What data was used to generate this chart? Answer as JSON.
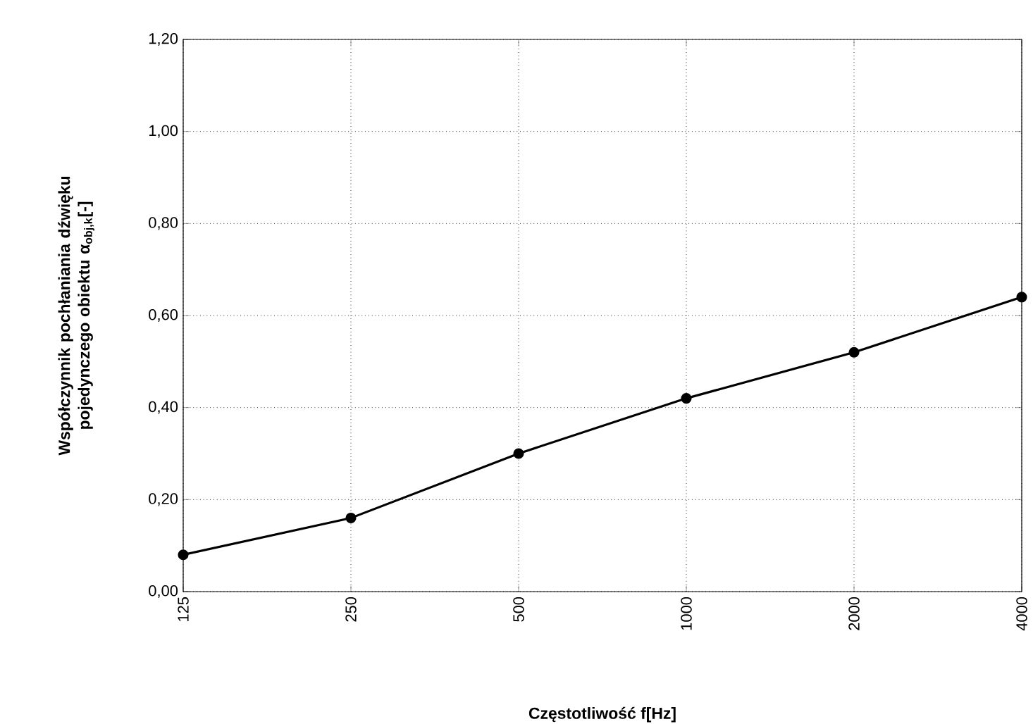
{
  "chart_data": {
    "type": "line",
    "xlabel": "Częstotliwość f[Hz]",
    "ylabel": "Współczynnik pochłaniania dźwięku pojedynczego obiektu α$_{obj,k}$[-]",
    "categories": [
      "125",
      "250",
      "500",
      "1000",
      "2000",
      "4000"
    ],
    "series": [
      {
        "color": "#000000",
        "values": [
          0.08,
          0.16,
          0.3,
          0.42,
          0.52,
          0.64
        ]
      }
    ],
    "ylim": [
      0,
      1.2
    ],
    "yticks": [
      {
        "value": 0,
        "label": "0,00"
      },
      {
        "value": 0.2,
        "label": "0,20"
      },
      {
        "value": 0.4,
        "label": "0,40"
      },
      {
        "value": 0.6,
        "label": "0,60"
      },
      {
        "value": 0.8,
        "label": "0,80"
      },
      {
        "value": 1.0,
        "label": "1,00"
      },
      {
        "value": 1.2,
        "label": "1,20"
      }
    ],
    "grid": true,
    "marker": "circle",
    "line_style": "solid"
  }
}
